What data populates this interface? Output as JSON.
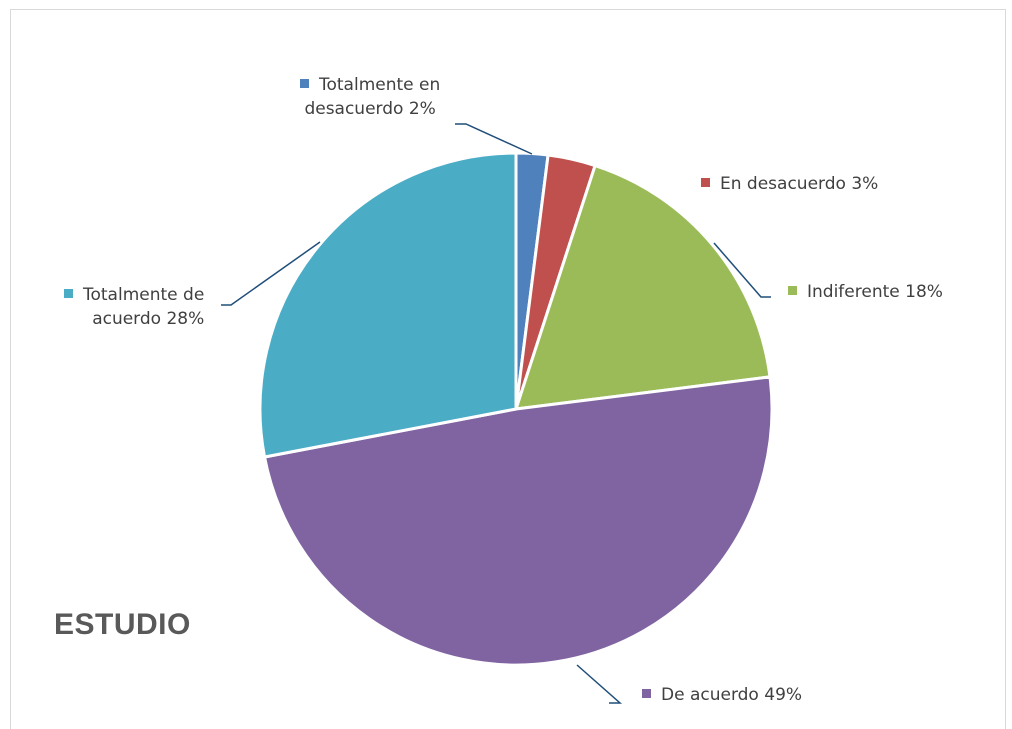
{
  "chart_data": {
    "type": "pie",
    "title": "ESTUDIO",
    "slices": [
      {
        "label": "Totalmente en desacuerdo",
        "label_lines": [
          "Totalmente en",
          "desacuerdo"
        ],
        "value": 2,
        "display": "2%",
        "color": "#4F81BD"
      },
      {
        "label": "En desacuerdo",
        "label_lines": [
          "En desacuerdo"
        ],
        "value": 3,
        "display": "3%",
        "color": "#C0504D"
      },
      {
        "label": "Indiferente",
        "label_lines": [
          "Indiferente"
        ],
        "value": 18,
        "display": "18%",
        "color": "#9BBB59"
      },
      {
        "label": "De acuerdo",
        "label_lines": [
          "De acuerdo"
        ],
        "value": 49,
        "display": "49%",
        "color": "#8064A2"
      },
      {
        "label": "Totalmente de acuerdo",
        "label_lines": [
          "Totalmente de",
          "acuerdo"
        ],
        "value": 28,
        "display": "28%",
        "color": "#4BACC6"
      }
    ],
    "leader_line_color": "#1F4E79"
  }
}
